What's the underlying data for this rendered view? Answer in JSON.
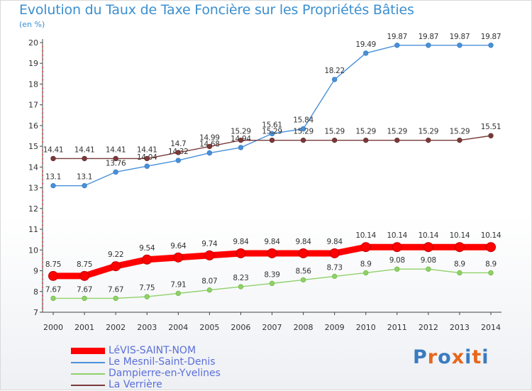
{
  "title": "Evolution du Taux de Taxe Foncière sur les Propriétés Bâties",
  "subtitle": "(en %)",
  "logo": {
    "text": "Proxiti",
    "colors": [
      "#3a7bbf",
      "#e6671b",
      "#3a7bbf",
      "#e6671b",
      "#3a7bbf",
      "#e6671b",
      "#3a7bbf"
    ]
  },
  "chart_data": {
    "type": "line",
    "title": "Evolution du Taux de Taxe Foncière sur les Propriétés Bâties",
    "ylabel": "(en %)",
    "x": [
      "2000",
      "2001",
      "2002",
      "2003",
      "2004",
      "2005",
      "2006",
      "2007",
      "2008",
      "2009",
      "2010",
      "2011",
      "2012",
      "2013",
      "2014"
    ],
    "y_ticks": [
      7,
      8,
      9,
      10,
      11,
      12,
      13,
      14,
      15,
      16,
      17,
      18,
      19,
      20
    ],
    "ylim": [
      7,
      20
    ],
    "grid": false,
    "legend_position": "bottom-left",
    "series": [
      {
        "name": "LéVIS-SAINT-NOM",
        "color": "#ff0000",
        "bold": true,
        "values": [
          8.75,
          8.75,
          9.22,
          9.54,
          9.64,
          9.74,
          9.84,
          9.84,
          9.84,
          9.84,
          10.14,
          10.14,
          10.14,
          10.14,
          10.14
        ]
      },
      {
        "name": "Le Mesnil-Saint-Denis",
        "color": "#4a90d9",
        "marker": "#3a7fc4",
        "values": [
          13.1,
          13.1,
          13.76,
          14.04,
          14.32,
          14.68,
          14.94,
          15.61,
          15.84,
          18.22,
          19.49,
          19.87,
          19.87,
          19.87,
          19.87
        ]
      },
      {
        "name": "Dampierre-en-Yvelines",
        "color": "#8fd16a",
        "marker": "#7ac04f",
        "values": [
          7.67,
          7.67,
          7.67,
          7.75,
          7.91,
          8.07,
          8.23,
          8.39,
          8.56,
          8.73,
          8.9,
          9.08,
          9.08,
          8.9,
          8.9
        ]
      },
      {
        "name": "La Verrière",
        "color": "#7a3a3a",
        "marker": "#6b2e2e",
        "values": [
          14.41,
          14.41,
          14.41,
          14.41,
          14.7,
          14.99,
          15.29,
          15.29,
          15.29,
          15.29,
          15.29,
          15.29,
          15.29,
          15.29,
          15.51
        ]
      }
    ]
  }
}
